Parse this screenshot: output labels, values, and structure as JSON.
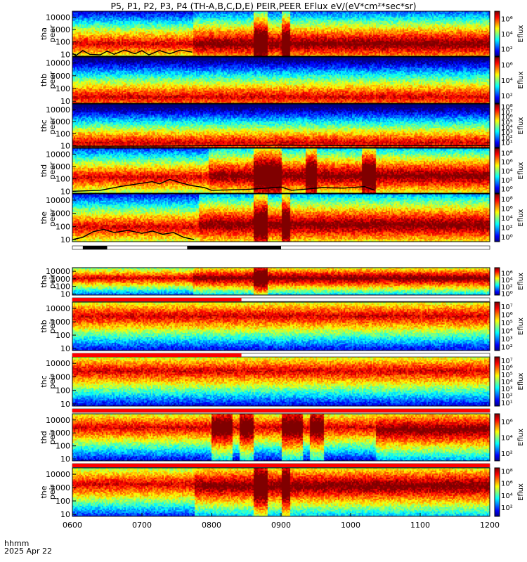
{
  "title": "P5, P1, P2, P3, P4 (TH-A,B,C,D,E) PEIR,PEER EFlux eV/(eV*cm²*sec*sr)",
  "footer": {
    "time_label": "hhmm",
    "date_label": "2025 Apr 22"
  },
  "time_axis": {
    "range": [
      600,
      1200
    ],
    "tick_labels": [
      "0600",
      "0700",
      "0800",
      "0900",
      "1000",
      "1100",
      "1200"
    ],
    "tick_values": [
      600,
      700,
      800,
      900,
      1000,
      1100,
      1200
    ]
  },
  "chart_data": {
    "type": "heatmap",
    "x_unit": "hhmm UT",
    "y_unit": "eV",
    "y_scale": "log",
    "panels": [
      {
        "id": "tha-peer",
        "ylabel": [
          "tha",
          "peer"
        ],
        "ytick_labels": [
          "10000",
          "1000",
          "100",
          "10"
        ],
        "ytick_values": [
          10000,
          1000,
          100,
          10
        ],
        "yrange": [
          7,
          30000
        ],
        "colorbar_label": "Eflux",
        "colorbar_ticks": [
          "10⁶",
          "10⁴",
          "10²"
        ],
        "colorbar_exps": [
          6,
          4,
          2
        ],
        "colorbar_range": [
          1,
          7
        ],
        "spectrogram": {
          "peak_energy_before": 80,
          "peak_energy_after": 80,
          "event_onset": 772,
          "bursts": [
            [
              860,
              880
            ],
            [
              900,
              912
            ]
          ]
        },
        "overlay_line": {
          "points": [
            [
              600,
              12
            ],
            [
              605,
              8
            ],
            [
              615,
              20
            ],
            [
              625,
              10
            ],
            [
              640,
              9
            ],
            [
              650,
              18
            ],
            [
              660,
              10
            ],
            [
              675,
              22
            ],
            [
              690,
              11
            ],
            [
              700,
              20
            ],
            [
              710,
              9
            ],
            [
              725,
              20
            ],
            [
              740,
              11
            ],
            [
              755,
              22
            ],
            [
              772,
              15
            ],
            [
              775,
              0
            ]
          ]
        }
      },
      {
        "id": "thb-peer",
        "ylabel": [
          "thb",
          "peer"
        ],
        "ytick_labels": [
          "10000",
          "1000",
          "100",
          "10"
        ],
        "ytick_values": [
          10000,
          1000,
          100,
          10
        ],
        "yrange": [
          7,
          30000
        ],
        "colorbar_label": "Eflux",
        "colorbar_ticks": [
          "10⁶",
          "10⁴",
          "10²"
        ],
        "colorbar_exps": [
          6,
          4,
          2
        ],
        "colorbar_range": [
          1,
          7
        ],
        "spectrogram": {
          "peak_energy_before": 25,
          "peak_energy_after": 25,
          "event_onset": 0,
          "bursts": []
        }
      },
      {
        "id": "thc-peer",
        "ylabel": [
          "thc",
          "peer"
        ],
        "ytick_labels": [
          "10000",
          "1000",
          "100",
          "10"
        ],
        "ytick_values": [
          10000,
          1000,
          100,
          10
        ],
        "yrange": [
          7,
          30000
        ],
        "colorbar_label": "Eflux",
        "colorbar_ticks": [
          "10⁸",
          "10⁷",
          "10⁶",
          "10⁵",
          "10⁴",
          "10³",
          "10²",
          "10¹"
        ],
        "colorbar_exps": [
          8,
          7,
          6,
          5,
          4,
          3,
          2,
          1
        ],
        "colorbar_range": [
          0,
          8.5
        ],
        "spectrogram": {
          "peak_energy_before": 20,
          "peak_energy_after": 20,
          "event_onset": 0,
          "bursts": []
        },
        "overlay_line": {
          "points": [
            [
              600,
              9
            ],
            [
              700,
              9
            ],
            [
              800,
              10
            ],
            [
              900,
              11
            ],
            [
              1000,
              10
            ],
            [
              1100,
              10
            ],
            [
              1200,
              10
            ]
          ]
        }
      },
      {
        "id": "thd-peer",
        "ylabel": [
          "thd",
          "peer"
        ],
        "ytick_labels": [
          "10000",
          "1000",
          "100",
          "10"
        ],
        "ytick_values": [
          10000,
          1000,
          100,
          10
        ],
        "yrange": [
          7,
          30000
        ],
        "colorbar_label": "Eflux",
        "colorbar_ticks": [
          "10⁸",
          "10⁶",
          "10⁴",
          "10²",
          "10⁰"
        ],
        "colorbar_exps": [
          8,
          6,
          4,
          2,
          0
        ],
        "colorbar_range": [
          -1,
          9
        ],
        "spectrogram": {
          "peak_energy_before": 150,
          "peak_energy_after": 200,
          "event_onset": 795,
          "bursts": [
            [
              860,
              900
            ],
            [
              935,
              950
            ],
            [
              1015,
              1035
            ]
          ]
        },
        "overlay_line": {
          "points": [
            [
              600,
              10
            ],
            [
              640,
              12
            ],
            [
              670,
              25
            ],
            [
              700,
              45
            ],
            [
              715,
              60
            ],
            [
              725,
              40
            ],
            [
              740,
              90
            ],
            [
              755,
              50
            ],
            [
              770,
              30
            ],
            [
              790,
              20
            ],
            [
              800,
              12
            ],
            [
              850,
              14
            ],
            [
              880,
              18
            ],
            [
              900,
              22
            ],
            [
              915,
              12
            ],
            [
              930,
              14
            ],
            [
              960,
              20
            ],
            [
              990,
              18
            ],
            [
              1020,
              24
            ],
            [
              1035,
              12
            ],
            [
              1040,
              0
            ]
          ]
        }
      },
      {
        "id": "the-peer",
        "ylabel": [
          "the",
          "peer"
        ],
        "ytick_labels": [
          "10000",
          "1000",
          "100",
          "10"
        ],
        "ytick_values": [
          10000,
          1000,
          100,
          10
        ],
        "yrange": [
          7,
          30000
        ],
        "colorbar_label": "Eflux",
        "colorbar_ticks": [
          "10⁸",
          "10⁶",
          "10⁴",
          "10²",
          "10⁰"
        ],
        "colorbar_exps": [
          8,
          6,
          4,
          2,
          0
        ],
        "colorbar_range": [
          -1,
          9
        ],
        "spectrogram": {
          "peak_energy_before": 100,
          "peak_energy_after": 150,
          "event_onset": 780,
          "bursts": [
            [
              860,
              880
            ],
            [
              900,
              912
            ]
          ]
        },
        "overlay_line": {
          "points": [
            [
              600,
              10
            ],
            [
              615,
              15
            ],
            [
              630,
              40
            ],
            [
              645,
              60
            ],
            [
              660,
              35
            ],
            [
              680,
              50
            ],
            [
              700,
              30
            ],
            [
              715,
              45
            ],
            [
              730,
              25
            ],
            [
              745,
              35
            ],
            [
              760,
              15
            ],
            [
              775,
              10
            ],
            [
              780,
              0
            ]
          ]
        }
      },
      {
        "id": "tha-peir",
        "ylabel": [
          "tha",
          "peir"
        ],
        "ytick_labels": [
          "10000",
          "1000",
          "100",
          "10"
        ],
        "ytick_values": [
          10000,
          1000,
          100,
          10
        ],
        "yrange": [
          7,
          30000
        ],
        "colorbar_label": "Eflux",
        "colorbar_ticks": [
          "10⁶",
          "10⁴",
          "10²",
          "10⁰"
        ],
        "colorbar_exps": [
          6,
          4,
          2,
          0
        ],
        "colorbar_range": [
          -0.5,
          7.5
        ],
        "spectrogram": {
          "peak_energy_before": 1500,
          "peak_energy_after": 1500,
          "event_onset": 772,
          "bursts": [
            [
              860,
              880
            ]
          ]
        }
      },
      {
        "id": "thb-peir",
        "ylabel": [
          "thb",
          "peir"
        ],
        "ytick_labels": [
          "10000",
          "1000",
          "100",
          "10"
        ],
        "ytick_values": [
          10000,
          1000,
          100,
          10
        ],
        "yrange": [
          7,
          30000
        ],
        "colorbar_label": "Eflux",
        "colorbar_ticks": [
          "10⁷",
          "10⁶",
          "10⁵",
          "10⁴",
          "10³",
          "10²"
        ],
        "colorbar_exps": [
          7,
          6,
          5,
          4,
          3,
          2
        ],
        "colorbar_range": [
          1.5,
          7.5
        ],
        "spectrogram": {
          "peak_energy_before": 3000,
          "peak_energy_after": 3000,
          "event_onset": 0,
          "bursts": []
        }
      },
      {
        "id": "thc-peir",
        "ylabel": [
          "thc",
          "peir"
        ],
        "ytick_labels": [
          "10000",
          "1000",
          "100",
          "10"
        ],
        "ytick_values": [
          10000,
          1000,
          100,
          10
        ],
        "yrange": [
          7,
          30000
        ],
        "colorbar_label": "Eflux",
        "colorbar_ticks": [
          "10⁷",
          "10⁶",
          "10⁵",
          "10⁴",
          "10³",
          "10²",
          "10¹"
        ],
        "colorbar_exps": [
          7,
          6,
          5,
          4,
          3,
          2,
          1
        ],
        "colorbar_range": [
          0.5,
          7.5
        ],
        "spectrogram": {
          "peak_energy_before": 3000,
          "peak_energy_after": 3000,
          "event_onset": 0,
          "bursts": []
        }
      },
      {
        "id": "thd-peir",
        "ylabel": [
          "thd",
          "peir"
        ],
        "ytick_labels": [
          "10000",
          "1000",
          "100",
          "10"
        ],
        "ytick_values": [
          10000,
          1000,
          100,
          10
        ],
        "yrange": [
          7,
          30000
        ],
        "colorbar_label": "Eflux",
        "colorbar_ticks": [
          "10⁶",
          "10⁴",
          "10²"
        ],
        "colorbar_exps": [
          6,
          4,
          2
        ],
        "colorbar_range": [
          1,
          7
        ],
        "spectrogram": {
          "peak_energy_before": 3000,
          "peak_energy_after": 2000,
          "event_onset": 1035,
          "bursts": [
            [
              800,
              830
            ],
            [
              840,
              860
            ],
            [
              900,
              930
            ],
            [
              940,
              960
            ]
          ]
        }
      },
      {
        "id": "the-peir",
        "ylabel": [
          "the",
          "peir"
        ],
        "ytick_labels": [
          "10000",
          "1000",
          "100",
          "10"
        ],
        "ytick_values": [
          10000,
          1000,
          100,
          10
        ],
        "yrange": [
          7,
          30000
        ],
        "colorbar_label": "Eflux",
        "colorbar_ticks": [
          "10⁸",
          "10⁶",
          "10⁴",
          "10²"
        ],
        "colorbar_exps": [
          8,
          6,
          4,
          2
        ],
        "colorbar_range": [
          0.5,
          8.5
        ],
        "spectrogram": {
          "peak_energy_before": 2000,
          "peak_energy_after": 1500,
          "event_onset": 775,
          "bursts": [
            [
              860,
              880
            ],
            [
              900,
              912
            ]
          ]
        }
      }
    ]
  }
}
